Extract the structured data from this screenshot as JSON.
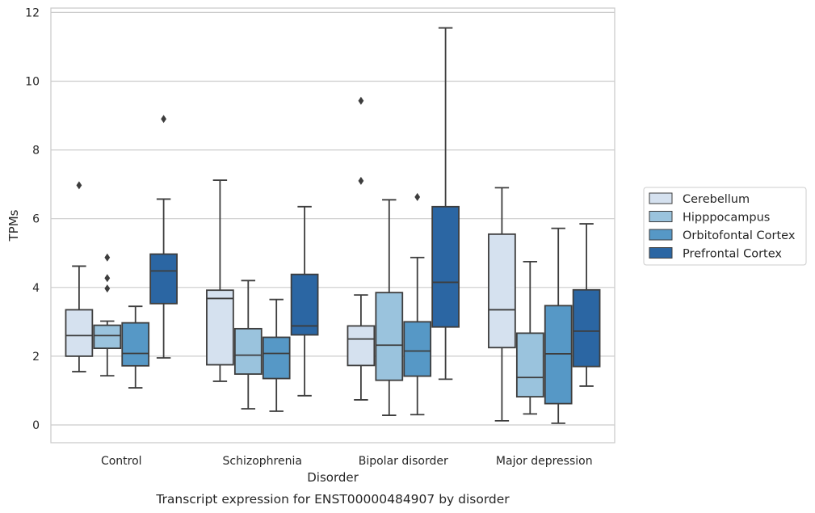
{
  "chart_data": {
    "type": "box",
    "xlabel": "Disorder",
    "ylabel": "TPMs",
    "caption": "Transcript expression for ENST00000484907 by disorder",
    "ylim": [
      -0.5,
      12.15
    ],
    "yticks": [
      0,
      2,
      4,
      6,
      8,
      10,
      12
    ],
    "grid": true,
    "legend_position": "right",
    "categories": [
      "Control",
      "Schizophrenia",
      "Bipolar disorder",
      "Major depression"
    ],
    "series": [
      {
        "name": "Cerebellum",
        "color": "#d5e1ef",
        "boxes": [
          {
            "whisker_low": 1.55,
            "q1": 2.0,
            "median": 2.6,
            "q3": 3.35,
            "whisker_high": 4.62,
            "outliers": [
              6.97
            ]
          },
          {
            "whisker_low": 1.27,
            "q1": 1.75,
            "median": 3.68,
            "q3": 3.92,
            "whisker_high": 7.12,
            "outliers": []
          },
          {
            "whisker_low": 0.73,
            "q1": 1.73,
            "median": 2.5,
            "q3": 2.88,
            "whisker_high": 3.78,
            "outliers": [
              7.1,
              9.43
            ]
          },
          {
            "whisker_low": 0.12,
            "q1": 2.25,
            "median": 3.35,
            "q3": 5.55,
            "whisker_high": 6.9,
            "outliers": []
          }
        ]
      },
      {
        "name": "Hipppocampus",
        "color": "#9ac3dd",
        "boxes": [
          {
            "whisker_low": 1.43,
            "q1": 2.23,
            "median": 2.6,
            "q3": 2.9,
            "whisker_high": 3.02,
            "outliers": [
              3.97,
              4.27,
              4.87
            ]
          },
          {
            "whisker_low": 0.47,
            "q1": 1.48,
            "median": 2.03,
            "q3": 2.8,
            "whisker_high": 4.2,
            "outliers": []
          },
          {
            "whisker_low": 0.28,
            "q1": 1.3,
            "median": 2.32,
            "q3": 3.85,
            "whisker_high": 6.55,
            "outliers": []
          },
          {
            "whisker_low": 0.32,
            "q1": 0.82,
            "median": 1.38,
            "q3": 2.67,
            "whisker_high": 4.75,
            "outliers": []
          }
        ]
      },
      {
        "name": "Orbitofontal Cortex",
        "color": "#5698c6",
        "boxes": [
          {
            "whisker_low": 1.08,
            "q1": 1.72,
            "median": 2.08,
            "q3": 2.97,
            "whisker_high": 3.45,
            "outliers": []
          },
          {
            "whisker_low": 0.4,
            "q1": 1.35,
            "median": 2.08,
            "q3": 2.55,
            "whisker_high": 3.65,
            "outliers": []
          },
          {
            "whisker_low": 0.3,
            "q1": 1.42,
            "median": 2.15,
            "q3": 3.0,
            "whisker_high": 4.87,
            "outliers": [
              6.63
            ]
          },
          {
            "whisker_low": 0.05,
            "q1": 0.62,
            "median": 2.07,
            "q3": 3.47,
            "whisker_high": 5.72,
            "outliers": []
          }
        ]
      },
      {
        "name": "Prefrontal Cortex",
        "color": "#2b66a3",
        "boxes": [
          {
            "whisker_low": 1.95,
            "q1": 3.53,
            "median": 4.48,
            "q3": 4.97,
            "whisker_high": 6.57,
            "outliers": [
              8.9
            ]
          },
          {
            "whisker_low": 0.85,
            "q1": 2.62,
            "median": 2.88,
            "q3": 4.38,
            "whisker_high": 6.35,
            "outliers": []
          },
          {
            "whisker_low": 1.33,
            "q1": 2.85,
            "median": 4.15,
            "q3": 6.35,
            "whisker_high": 11.55,
            "outliers": []
          },
          {
            "whisker_low": 1.13,
            "q1": 1.7,
            "median": 2.73,
            "q3": 3.93,
            "whisker_high": 5.85,
            "outliers": []
          }
        ]
      }
    ]
  }
}
